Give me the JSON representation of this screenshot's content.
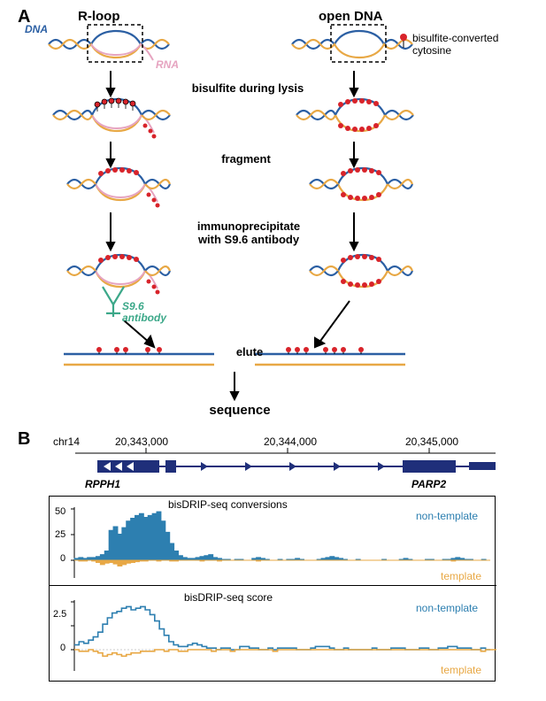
{
  "panelA": {
    "label": "A",
    "rloop_header": "R-loop",
    "open_dna_header": "open DNA",
    "dna_label": "DNA",
    "rna_label": "RNA",
    "antibody_label": "S9.6\nantibody",
    "legend_label": "bisulfite-converted\ncytosine",
    "steps": {
      "step1": "bisulfite during lysis",
      "step2": "fragment",
      "step3": "immunoprecipitate\nwith S9.6 antibody",
      "step4": "elute",
      "step5": "sequence"
    },
    "colors": {
      "dna_top": "#2b5fa3",
      "dna_bottom": "#e8a845",
      "rna": "#e6a4c0",
      "antibody": "#3ca889",
      "cytosine": "#d8232a",
      "box": "#000000"
    }
  },
  "panelB": {
    "label": "B",
    "chromosome": "chr14",
    "coords": [
      "20,343,000",
      "20,344,000",
      "20,345,000"
    ],
    "genes": {
      "left": "RPPH1",
      "right": "PARP2"
    },
    "chart1": {
      "title": "bisDRIP-seq conversions",
      "ylabel_top": "non-template",
      "ylabel_bottom": "template",
      "yticks": [
        "50",
        "25",
        "0"
      ],
      "nontemplate_color": "#2d7fb0",
      "template_color": "#e8a845",
      "nontemplate_values": [
        2,
        3,
        2,
        3,
        3,
        4,
        6,
        10,
        32,
        36,
        28,
        35,
        42,
        45,
        48,
        50,
        46,
        48,
        50,
        52,
        42,
        30,
        18,
        10,
        5,
        3,
        2,
        2,
        3,
        4,
        5,
        6,
        3,
        2,
        1,
        1,
        0,
        1,
        1,
        0,
        0,
        2,
        3,
        2,
        1,
        0,
        0,
        1,
        0,
        1,
        1,
        2,
        1,
        0,
        0,
        0,
        1,
        2,
        3,
        4,
        3,
        2,
        1,
        0,
        0,
        1,
        0,
        0,
        0,
        0,
        0,
        1,
        0,
        0,
        0,
        1,
        2,
        1,
        0,
        0,
        0,
        1,
        1,
        0,
        0,
        1,
        1,
        2,
        3,
        2,
        1,
        1,
        0,
        0,
        1,
        0
      ],
      "template_values": [
        0,
        1,
        1,
        0,
        1,
        3,
        6,
        4,
        3,
        5,
        8,
        6,
        4,
        3,
        2,
        1,
        1,
        0,
        0,
        1,
        0,
        0,
        1,
        1,
        0,
        0,
        0,
        0,
        0,
        1,
        0,
        0,
        0,
        1,
        0,
        0,
        0,
        0,
        0,
        0,
        0,
        0,
        1,
        0,
        0,
        0,
        0,
        0,
        0,
        0,
        0,
        0,
        0,
        0,
        0,
        0,
        0,
        0,
        0,
        0,
        0,
        0,
        0,
        0,
        0,
        0,
        0,
        0,
        0,
        0,
        0,
        0,
        0,
        0,
        0,
        0,
        0,
        0,
        0,
        0,
        0,
        0,
        0,
        0,
        0,
        0,
        0,
        1,
        0,
        0,
        0,
        0,
        0,
        0,
        0,
        0
      ]
    },
    "chart2": {
      "title": "bisDRIP-seq score",
      "ylabel_top": "non-template",
      "ylabel_bottom": "template",
      "yticks": [
        "2.5",
        "0"
      ],
      "nontemplate_color": "#2d7fb0",
      "template_color": "#e8a845",
      "nontemplate_values": [
        0.3,
        0.5,
        0.4,
        0.6,
        0.8,
        1.1,
        1.6,
        2.0,
        2.3,
        2.4,
        2.6,
        2.7,
        2.5,
        2.6,
        2.7,
        2.5,
        2.2,
        1.8,
        1.3,
        0.9,
        0.5,
        0.3,
        0.2,
        0.2,
        0.3,
        0.4,
        0.3,
        0.2,
        0.1,
        0.1,
        0,
        0.1,
        0.1,
        0,
        0,
        0.2,
        0.2,
        0.1,
        0.1,
        0,
        0,
        0.1,
        0,
        0.1,
        0.1,
        0.1,
        0.1,
        0,
        0,
        0,
        0.1,
        0.2,
        0.2,
        0.2,
        0.1,
        0,
        0,
        0.1,
        0,
        0,
        0,
        0,
        0,
        0.1,
        0,
        0,
        0,
        0.1,
        0.1,
        0.1,
        0,
        0,
        0,
        0.1,
        0.1,
        0,
        0,
        0.1,
        0.1,
        0.2,
        0.2,
        0.1,
        0.1,
        0.1,
        0,
        0,
        0.1,
        0
      ],
      "template_values": [
        0,
        0.1,
        0.1,
        0,
        0.1,
        0.2,
        0.4,
        0.3,
        0.2,
        0.3,
        0.4,
        0.3,
        0.2,
        0.2,
        0.1,
        0.1,
        0.1,
        0,
        0,
        0.1,
        0,
        0,
        0.1,
        0.1,
        0,
        0,
        0,
        0,
        0,
        0.1,
        0,
        0,
        0,
        0.1,
        0,
        0,
        0,
        0,
        0,
        0,
        0,
        0,
        0.1,
        0,
        0,
        0,
        0,
        0,
        0,
        0,
        0,
        0,
        0,
        0,
        0,
        0,
        0,
        0,
        0,
        0,
        0,
        0,
        0,
        0,
        0,
        0,
        0,
        0,
        0,
        0,
        0,
        0,
        0,
        0,
        0,
        0,
        0,
        0,
        0,
        0,
        0,
        0,
        0,
        0,
        0,
        0,
        0.1,
        0,
        0,
        0,
        0,
        0,
        0,
        0,
        0
      ]
    },
    "gene_color": "#1f2f7a"
  }
}
